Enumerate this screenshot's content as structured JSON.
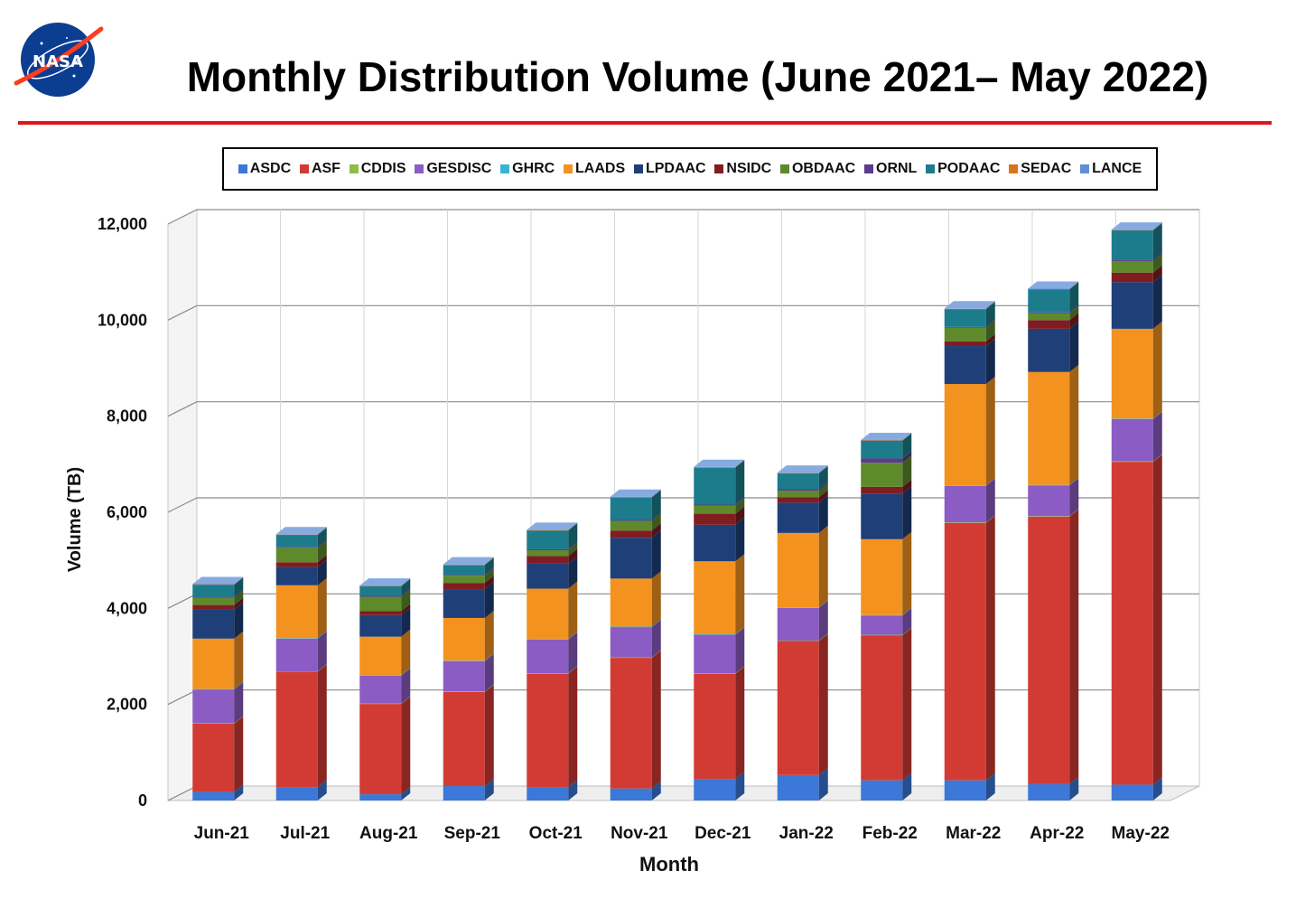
{
  "header": {
    "title": "Monthly Distribution Volume (June 2021– May 2022)",
    "logo_text": "NASA"
  },
  "colors": {
    "rule": "#e0161b"
  },
  "chart_data": {
    "type": "bar",
    "stacked": true,
    "style": "3d",
    "xlabel": "Month",
    "ylabel": "Volume (TB)",
    "ylim": [
      0,
      12000
    ],
    "yticks": [
      0,
      2000,
      4000,
      6000,
      8000,
      10000,
      12000
    ],
    "ytick_labels": [
      "0",
      "2,000",
      "4,000",
      "6,000",
      "8,000",
      "10,000",
      "12,000"
    ],
    "grid": true,
    "legend_position": "top",
    "categories": [
      "Jun-21",
      "Jul-21",
      "Aug-21",
      "Sep-21",
      "Oct-21",
      "Nov-21",
      "Dec-21",
      "Jan-22",
      "Feb-22",
      "Mar-22",
      "Apr-22",
      "May-22"
    ],
    "series": [
      {
        "name": "ASDC",
        "color": "#3b78d8",
        "values": [
          180,
          280,
          130,
          300,
          280,
          250,
          450,
          530,
          420,
          420,
          340,
          330
        ]
      },
      {
        "name": "ASF",
        "color": "#d23b34",
        "values": [
          1420,
          2400,
          1880,
          1960,
          2360,
          2720,
          2190,
          2790,
          3020,
          5360,
          5570,
          6720
        ]
      },
      {
        "name": "CDDIS",
        "color": "#8dbf45",
        "values": [
          10,
          10,
          10,
          10,
          10,
          10,
          10,
          10,
          10,
          10,
          10,
          10
        ]
      },
      {
        "name": "GESDISC",
        "color": "#8a5cc4",
        "values": [
          700,
          680,
          580,
          630,
          700,
          630,
          800,
          680,
          400,
          760,
          640,
          880
        ]
      },
      {
        "name": "GHRC",
        "color": "#37b6d4",
        "values": [
          10,
          10,
          10,
          10,
          10,
          10,
          10,
          10,
          10,
          10,
          10,
          10
        ]
      },
      {
        "name": "LAADS",
        "color": "#f4921f",
        "values": [
          1050,
          1100,
          800,
          890,
          1050,
          1000,
          1520,
          1550,
          1580,
          2110,
          2350,
          1870
        ]
      },
      {
        "name": "LPDAAC",
        "color": "#1f3f78",
        "values": [
          600,
          380,
          450,
          600,
          520,
          850,
          760,
          630,
          950,
          790,
          900,
          970
        ]
      },
      {
        "name": "NSIDC",
        "color": "#7f1d22",
        "values": [
          100,
          100,
          80,
          130,
          160,
          150,
          230,
          110,
          140,
          100,
          180,
          200
        ]
      },
      {
        "name": "OBDAAC",
        "color": "#5e8a2c",
        "values": [
          150,
          300,
          300,
          150,
          120,
          200,
          170,
          140,
          500,
          280,
          140,
          240
        ]
      },
      {
        "name": "ORNL",
        "color": "#5a3b8c",
        "values": [
          20,
          20,
          20,
          20,
          20,
          20,
          20,
          30,
          90,
          20,
          20,
          30
        ]
      },
      {
        "name": "PODAAC",
        "color": "#1d7c8c",
        "values": [
          250,
          250,
          200,
          200,
          390,
          470,
          770,
          330,
          370,
          370,
          480,
          610
        ]
      },
      {
        "name": "SEDAC",
        "color": "#d9741b",
        "values": [
          5,
          5,
          5,
          5,
          5,
          5,
          5,
          5,
          5,
          5,
          5,
          5
        ]
      },
      {
        "name": "LANCE",
        "color": "#5f8fd6",
        "values": [
          10,
          10,
          10,
          10,
          10,
          10,
          10,
          10,
          10,
          10,
          10,
          10
        ]
      }
    ]
  }
}
